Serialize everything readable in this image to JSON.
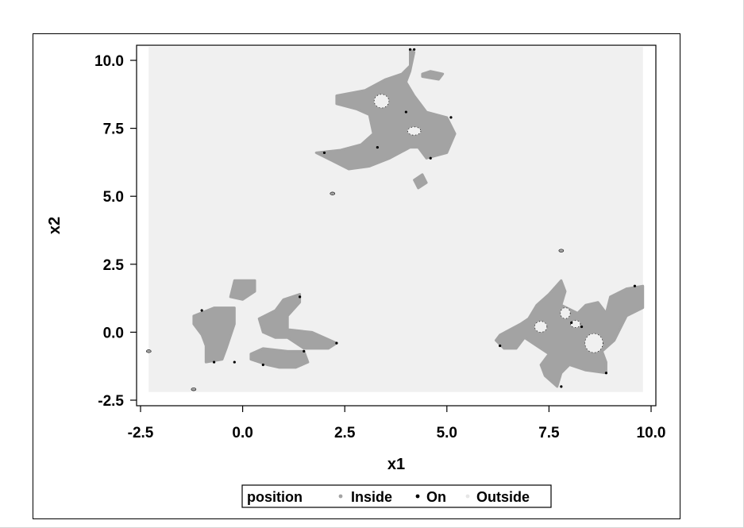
{
  "chart_data": {
    "type": "scatter",
    "xlabel": "x1",
    "ylabel": "x2",
    "xlim": [
      -2.5,
      10.0
    ],
    "ylim": [
      -2.5,
      10.0
    ],
    "x_ticks": [
      "-2.5",
      "0.0",
      "2.5",
      "5.0",
      "7.5",
      "10.0"
    ],
    "y_ticks": [
      "10.0",
      "7.5",
      "5.0",
      "2.5",
      "0.0",
      "-2.5"
    ],
    "grid": false,
    "legend_placement": "bottom",
    "legend_title": "position",
    "series": [
      {
        "name": "Inside",
        "color": "#a3a3a3"
      },
      {
        "name": "On",
        "color": "#000000"
      },
      {
        "name": "Outside",
        "color": "#f0f0f0"
      }
    ],
    "grid_extent": {
      "x": [
        -2.3,
        9.8
      ],
      "y": [
        -2.2,
        10.5
      ]
    },
    "regions": {
      "inside": [
        [
          [
            2.3,
            8.7
          ],
          [
            3.0,
            8.9
          ],
          [
            3.5,
            9.3
          ],
          [
            3.9,
            9.5
          ],
          [
            4.1,
            9.8
          ],
          [
            4.1,
            10.4
          ],
          [
            4.2,
            10.3
          ],
          [
            4.1,
            9.6
          ],
          [
            4.0,
            9.2
          ],
          [
            4.2,
            8.7
          ],
          [
            4.5,
            8.1
          ],
          [
            5.0,
            7.9
          ],
          [
            5.2,
            7.3
          ],
          [
            5.0,
            6.6
          ],
          [
            4.5,
            6.4
          ],
          [
            4.3,
            6.8
          ],
          [
            4.1,
            6.8
          ],
          [
            3.6,
            6.4
          ],
          [
            3.1,
            6.1
          ],
          [
            2.6,
            6.0
          ],
          [
            2.2,
            6.3
          ],
          [
            1.8,
            6.6
          ],
          [
            2.4,
            6.7
          ],
          [
            2.9,
            6.9
          ],
          [
            3.2,
            7.3
          ],
          [
            3.1,
            8.0
          ],
          [
            2.8,
            8.2
          ],
          [
            2.3,
            8.4
          ]
        ],
        [
          [
            4.4,
            9.5
          ],
          [
            4.6,
            9.6
          ],
          [
            4.9,
            9.5
          ],
          [
            4.8,
            9.3
          ],
          [
            4.4,
            9.4
          ]
        ],
        [
          [
            4.2,
            5.6
          ],
          [
            4.4,
            5.8
          ],
          [
            4.5,
            5.5
          ],
          [
            4.3,
            5.3
          ]
        ],
        [
          [
            -1.2,
            0.6
          ],
          [
            -0.7,
            0.9
          ],
          [
            -0.2,
            0.9
          ],
          [
            -0.2,
            0.3
          ],
          [
            -0.4,
            -0.6
          ],
          [
            -0.5,
            -1.0
          ],
          [
            -0.9,
            -1.1
          ],
          [
            -0.9,
            -0.5
          ],
          [
            -1.0,
            -0.1
          ],
          [
            -1.2,
            0.3
          ]
        ],
        [
          [
            -0.3,
            1.3
          ],
          [
            -0.2,
            1.9
          ],
          [
            0.3,
            1.9
          ],
          [
            0.3,
            1.5
          ],
          [
            0.0,
            1.2
          ]
        ],
        [
          [
            0.5,
            0.0
          ],
          [
            0.4,
            0.5
          ],
          [
            0.8,
            0.8
          ],
          [
            1.0,
            1.2
          ],
          [
            1.4,
            1.4
          ],
          [
            1.4,
            1.1
          ],
          [
            1.1,
            0.6
          ],
          [
            1.1,
            0.1
          ],
          [
            1.7,
            0.0
          ],
          [
            2.3,
            -0.4
          ],
          [
            2.1,
            -0.6
          ],
          [
            1.5,
            -0.6
          ],
          [
            1.1,
            -0.2
          ],
          [
            0.8,
            -0.2
          ]
        ],
        [
          [
            0.2,
            -0.8
          ],
          [
            0.5,
            -0.6
          ],
          [
            1.1,
            -0.7
          ],
          [
            1.5,
            -0.7
          ],
          [
            1.6,
            -1.1
          ],
          [
            1.3,
            -1.3
          ],
          [
            0.9,
            -1.3
          ],
          [
            0.6,
            -1.2
          ],
          [
            0.2,
            -1.0
          ]
        ],
        [
          [
            6.3,
            -0.1
          ],
          [
            6.8,
            0.3
          ],
          [
            7.0,
            0.5
          ],
          [
            7.2,
            1.0
          ],
          [
            7.5,
            1.4
          ],
          [
            7.8,
            1.9
          ],
          [
            7.9,
            1.5
          ],
          [
            7.8,
            1.0
          ],
          [
            8.2,
            0.7
          ],
          [
            8.4,
            1.0
          ],
          [
            8.7,
            1.1
          ],
          [
            8.9,
            0.7
          ],
          [
            9.0,
            1.3
          ],
          [
            9.4,
            1.6
          ],
          [
            9.8,
            1.7
          ],
          [
            9.8,
            0.9
          ],
          [
            9.4,
            0.6
          ],
          [
            9.2,
            0.0
          ],
          [
            9.1,
            -0.3
          ],
          [
            8.8,
            -0.7
          ],
          [
            8.9,
            -1.1
          ],
          [
            8.9,
            -1.5
          ],
          [
            8.4,
            -1.4
          ],
          [
            8.0,
            -1.2
          ],
          [
            7.8,
            -1.5
          ],
          [
            7.7,
            -2.0
          ],
          [
            7.4,
            -1.6
          ],
          [
            7.3,
            -1.2
          ],
          [
            7.5,
            -0.8
          ],
          [
            7.1,
            -0.4
          ],
          [
            6.9,
            -0.2
          ],
          [
            6.7,
            -0.6
          ],
          [
            6.4,
            -0.6
          ],
          [
            6.2,
            -0.3
          ]
        ]
      ],
      "holes": [
        [
          3.4,
          8.5,
          0.18,
          0.25
        ],
        [
          4.2,
          7.4,
          0.16,
          0.15
        ],
        [
          7.3,
          0.2,
          0.15,
          0.2
        ],
        [
          7.9,
          0.7,
          0.12,
          0.2
        ],
        [
          8.6,
          -0.4,
          0.22,
          0.35
        ],
        [
          8.15,
          0.3,
          0.12,
          0.13
        ]
      ],
      "specks": [
        [
          2.2,
          5.1
        ],
        [
          7.8,
          3.0
        ],
        [
          -2.3,
          -0.7
        ],
        [
          -1.2,
          -2.1
        ]
      ],
      "on_points": [
        [
          4.1,
          10.4
        ],
        [
          4.2,
          10.4
        ],
        [
          4.0,
          8.1
        ],
        [
          5.1,
          7.9
        ],
        [
          4.6,
          6.4
        ],
        [
          3.3,
          6.8
        ],
        [
          2.0,
          6.6
        ],
        [
          -1.0,
          0.8
        ],
        [
          -0.2,
          -1.1
        ],
        [
          1.4,
          1.3
        ],
        [
          2.3,
          -0.4
        ],
        [
          0.5,
          -1.2
        ],
        [
          6.3,
          -0.5
        ],
        [
          7.8,
          -2.0
        ],
        [
          8.9,
          -1.5
        ],
        [
          9.6,
          1.7
        ],
        [
          8.3,
          0.2
        ],
        [
          8.05,
          0.35
        ],
        [
          -0.7,
          -1.1
        ],
        [
          1.5,
          -0.7
        ]
      ]
    }
  }
}
